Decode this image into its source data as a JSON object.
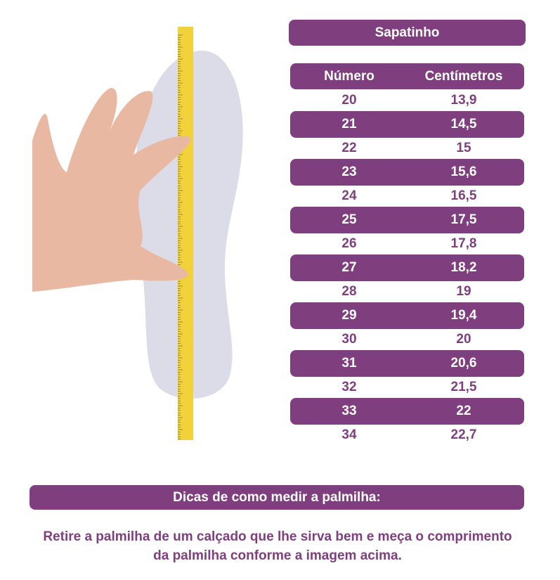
{
  "title": "Sapatinho",
  "table": {
    "headers": [
      "Número",
      "Centímetros"
    ],
    "rows": [
      [
        "20",
        "13,9"
      ],
      [
        "21",
        "14,5"
      ],
      [
        "22",
        "15"
      ],
      [
        "23",
        "15,6"
      ],
      [
        "24",
        "16,5"
      ],
      [
        "25",
        "17,5"
      ],
      [
        "26",
        "17,8"
      ],
      [
        "27",
        "18,2"
      ],
      [
        "28",
        "19"
      ],
      [
        "29",
        "19,4"
      ],
      [
        "30",
        "20"
      ],
      [
        "31",
        "20,6"
      ],
      [
        "32",
        "21,5"
      ],
      [
        "33",
        "22"
      ],
      [
        "34",
        "22,7"
      ]
    ]
  },
  "tips": {
    "heading": "Dicas de como medir a palmilha:",
    "text": "Retire a palmilha de um calçado que lhe sirva bem e meça o comprimento da palmilha conforme a imagem acima."
  },
  "colors": {
    "accent": "#7f3f7f",
    "tape": "#f2d23a",
    "insole": "#dcdce8"
  }
}
